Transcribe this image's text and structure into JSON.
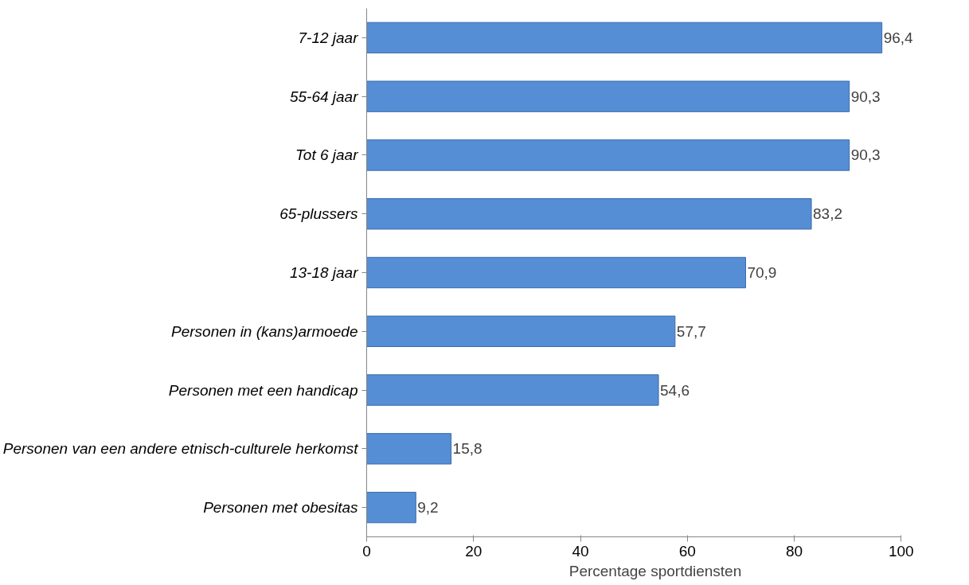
{
  "chart_data": {
    "type": "bar",
    "orientation": "horizontal",
    "xlabel": "Percentage sportdiensten",
    "categories": [
      "7-12 jaar",
      "55-64 jaar",
      "Tot 6 jaar",
      "65-plussers",
      "13-18 jaar",
      "Personen in (kans)armoede",
      "Personen met een handicap",
      "Personen van een andere etnisch-culturele herkomst",
      "Personen met obesitas"
    ],
    "values": [
      96.4,
      90.3,
      90.3,
      83.2,
      70.9,
      57.7,
      54.6,
      15.8,
      9.2
    ],
    "value_labels": [
      "96,4",
      "90,3",
      "90,3",
      "83,2",
      "70,9",
      "57,7",
      "54,6",
      "15,8",
      "9,2"
    ],
    "color": "#558ed5",
    "xlim": [
      0,
      100
    ],
    "xticks": [
      0,
      20,
      40,
      60,
      80,
      100
    ],
    "grid": false
  }
}
